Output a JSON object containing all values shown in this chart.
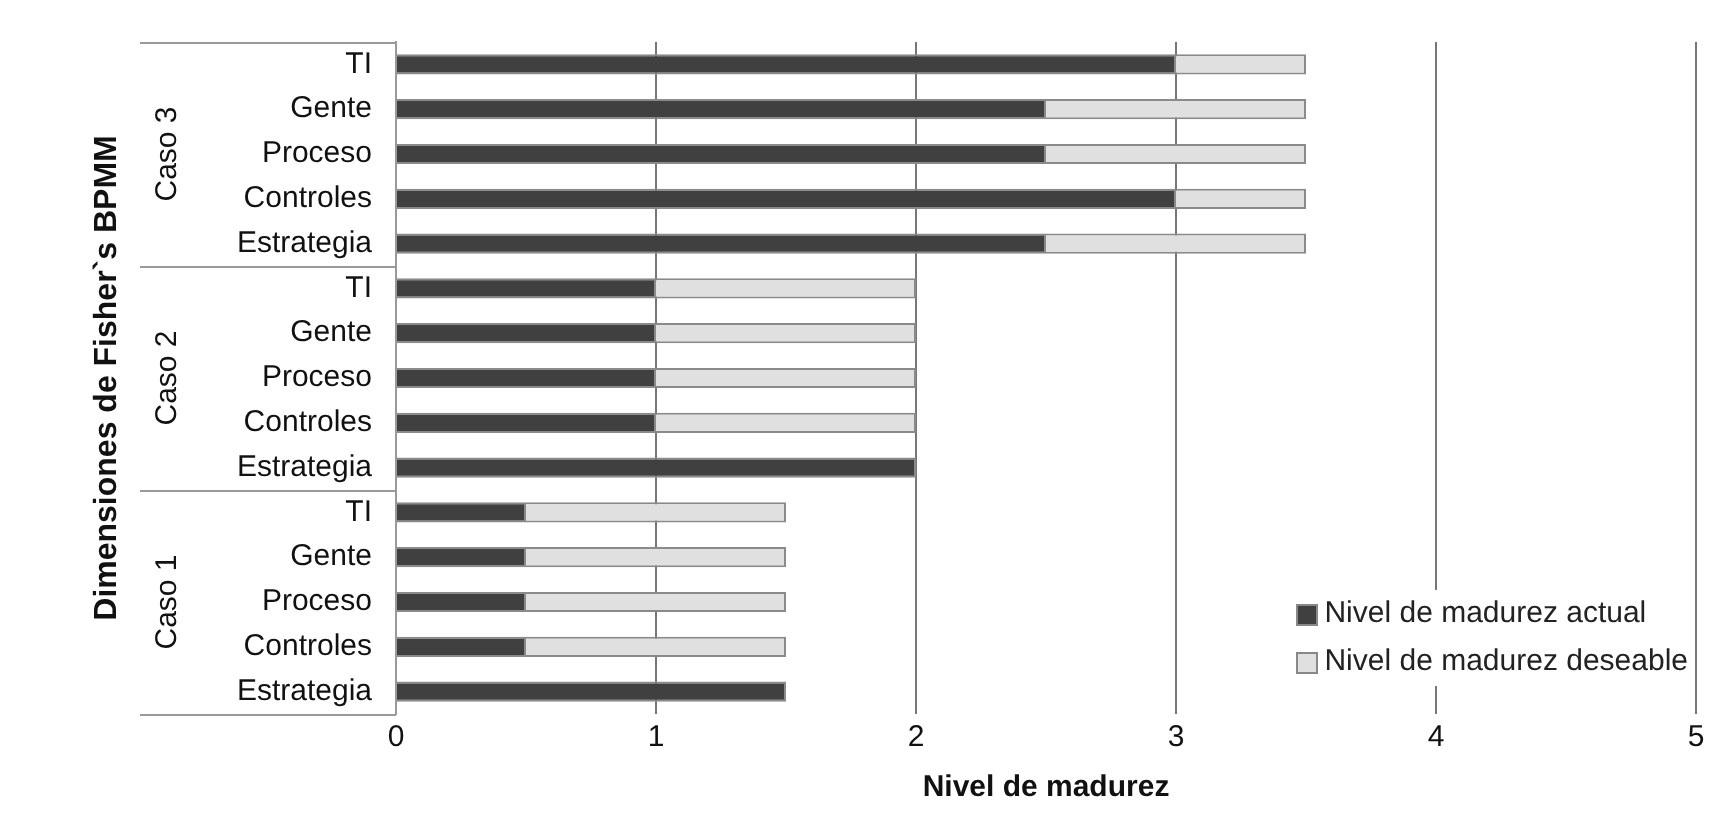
{
  "chart_data": {
    "type": "bar",
    "orientation": "horizontal",
    "stacked": true,
    "categories": [
      "TI",
      "Gente",
      "Proceso",
      "Controles",
      "Estrategia",
      "TI",
      "Gente",
      "Proceso",
      "Controles",
      "Estrategia",
      "TI",
      "Gente",
      "Proceso",
      "Controles",
      "Estrategia"
    ],
    "series": [
      {
        "name": "Nivel de madurez actual",
        "color": "#404040",
        "values": [
          3,
          2.5,
          2.5,
          3,
          2.5,
          1,
          1,
          1,
          1,
          2,
          0.5,
          0.5,
          0.5,
          0.5,
          1.5
        ]
      },
      {
        "name": "Nivel de madurez deseable",
        "color": "#e0e0e0",
        "values": [
          0.5,
          1,
          1,
          0.5,
          1,
          1,
          1,
          1,
          1,
          0,
          1,
          1,
          1,
          1,
          0
        ]
      }
    ],
    "xlabel": "Nivel de madurez",
    "ylabel": "Dimensiones de Fisher`s BPMM",
    "annotations": [
      "Caso 3",
      "Caso 2",
      "Caso 1"
    ],
    "xlim": [
      0,
      5
    ],
    "xticks": [
      0,
      1,
      2,
      3,
      4,
      5
    ],
    "grid": "x",
    "legend": "bottom right"
  }
}
